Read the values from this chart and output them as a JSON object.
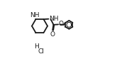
{
  "bg_color": "#ffffff",
  "line_color": "#1a1a1a",
  "line_width": 1.3,
  "font_size": 6.5,
  "figsize": [
    1.65,
    0.83
  ],
  "dpi": 100,
  "xlim": [
    0.0,
    1.0
  ],
  "ylim": [
    0.0,
    1.0
  ]
}
